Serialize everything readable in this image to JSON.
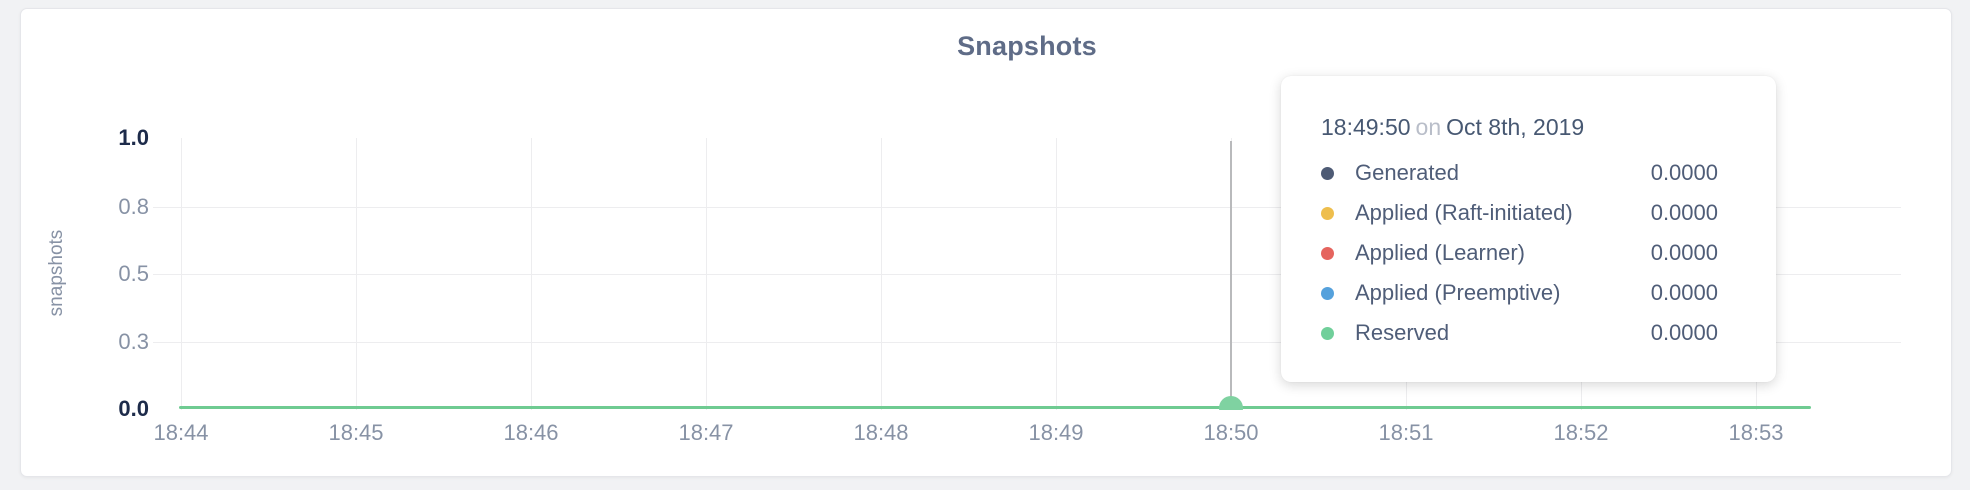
{
  "page": {
    "background": "#f1f2f4"
  },
  "chart": {
    "title": "Snapshots",
    "ylabel": "snapshots",
    "y_ticks": [
      "1.0",
      "0.8",
      "0.5",
      "0.3",
      "0.0"
    ],
    "x_ticks": [
      "18:44",
      "18:45",
      "18:46",
      "18:47",
      "18:48",
      "18:49",
      "18:50",
      "18:51",
      "18:52",
      "18:53"
    ],
    "colors": {
      "line": "#6fcb92",
      "hover_dot": "#7fd2a1",
      "hover_line": "#b9babc",
      "grid": "#ededef",
      "title_text": "#5f6c87",
      "axis_text": "#8792a5",
      "axis_minmax_text": "#1d2b4a"
    }
  },
  "tooltip": {
    "time": "18:49:50",
    "on_word": "on",
    "date": "Oct 8th, 2019",
    "rows": [
      {
        "label": "Generated",
        "value": "0.0000",
        "color": "#4e5b75"
      },
      {
        "label": "Applied (Raft-initiated)",
        "value": "0.0000",
        "color": "#eebe4d"
      },
      {
        "label": "Applied (Learner)",
        "value": "0.0000",
        "color": "#e5645e"
      },
      {
        "label": "Applied (Preemptive)",
        "value": "0.0000",
        "color": "#55a1dc"
      },
      {
        "label": "Reserved",
        "value": "0.0000",
        "color": "#70cf9a"
      }
    ]
  },
  "chart_data": {
    "type": "line",
    "title": "Snapshots",
    "xlabel": "",
    "ylabel": "snapshots",
    "x": [
      "18:44",
      "18:45",
      "18:46",
      "18:47",
      "18:48",
      "18:49",
      "18:50",
      "18:51",
      "18:52",
      "18:53"
    ],
    "series": [
      {
        "name": "Generated",
        "color": "#4e5b75",
        "values": [
          0,
          0,
          0,
          0,
          0,
          0,
          0,
          0,
          0,
          0
        ]
      },
      {
        "name": "Applied (Raft-initiated)",
        "color": "#eebe4d",
        "values": [
          0,
          0,
          0,
          0,
          0,
          0,
          0,
          0,
          0,
          0
        ]
      },
      {
        "name": "Applied (Learner)",
        "color": "#e5645e",
        "values": [
          0,
          0,
          0,
          0,
          0,
          0,
          0,
          0,
          0,
          0
        ]
      },
      {
        "name": "Applied (Preemptive)",
        "color": "#55a1dc",
        "values": [
          0,
          0,
          0,
          0,
          0,
          0,
          0,
          0,
          0,
          0
        ]
      },
      {
        "name": "Reserved",
        "color": "#70cf9a",
        "values": [
          0,
          0,
          0,
          0,
          0,
          0,
          0,
          0,
          0,
          0
        ]
      }
    ],
    "ylim": [
      0,
      1
    ],
    "y_tick_labels": [
      "0.0",
      "0.3",
      "0.5",
      "0.8",
      "1.0"
    ],
    "grid": true,
    "legend_position": "tooltip",
    "hover_point": {
      "x": "18:50",
      "time": "18:49:50",
      "date": "Oct 8th, 2019",
      "values": [
        0,
        0,
        0,
        0,
        0
      ]
    }
  }
}
